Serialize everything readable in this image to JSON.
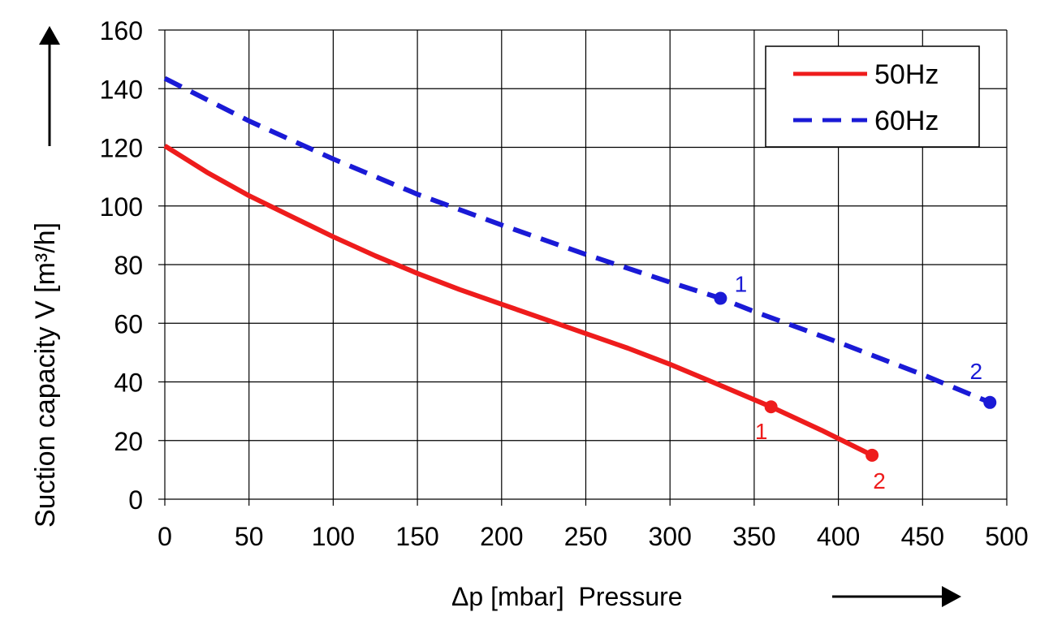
{
  "chart_data": {
    "type": "line",
    "xlabel": "Δp [mbar]  Pressure",
    "ylabel": "Suction capacity V [m³/h]",
    "xlim": [
      0,
      500
    ],
    "ylim": [
      0,
      160
    ],
    "x_ticks": [
      0,
      50,
      100,
      150,
      200,
      250,
      300,
      350,
      400,
      450,
      500
    ],
    "y_ticks": [
      0,
      20,
      40,
      60,
      80,
      100,
      120,
      140,
      160
    ],
    "grid": true,
    "legend_position": "top-right",
    "series": [
      {
        "name": "50Hz",
        "color": "#ee1c1c",
        "line_style": "solid",
        "points": [
          [
            0,
            120.5
          ],
          [
            25,
            111.5
          ],
          [
            50,
            103.5
          ],
          [
            75,
            96.5
          ],
          [
            100,
            89.5
          ],
          [
            125,
            83
          ],
          [
            150,
            77
          ],
          [
            175,
            71.5
          ],
          [
            200,
            66.5
          ],
          [
            225,
            61.5
          ],
          [
            250,
            56.5
          ],
          [
            275,
            51.5
          ],
          [
            300,
            46
          ],
          [
            325,
            40
          ],
          [
            360,
            31.5
          ],
          [
            390,
            23.5
          ],
          [
            420,
            15
          ]
        ],
        "markers": [
          {
            "x": 360,
            "y": 31.5,
            "label": "1"
          },
          {
            "x": 420,
            "y": 15,
            "label": "2"
          }
        ]
      },
      {
        "name": "60Hz",
        "color": "#1a1ad6",
        "line_style": "dashed",
        "points": [
          [
            0,
            143.5
          ],
          [
            50,
            129
          ],
          [
            100,
            116
          ],
          [
            150,
            104
          ],
          [
            200,
            93.5
          ],
          [
            250,
            83.5
          ],
          [
            300,
            74
          ],
          [
            330,
            68.5
          ],
          [
            350,
            64
          ],
          [
            400,
            53.5
          ],
          [
            450,
            42.5
          ],
          [
            490,
            33
          ]
        ],
        "markers": [
          {
            "x": 330,
            "y": 68.5,
            "label": "1"
          },
          {
            "x": 490,
            "y": 33,
            "label": "2"
          }
        ]
      }
    ]
  }
}
